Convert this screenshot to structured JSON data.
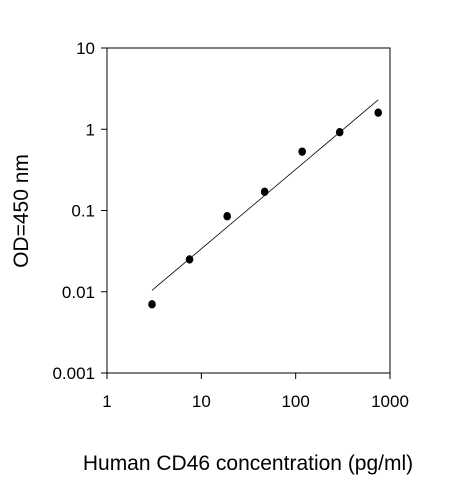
{
  "chart_data": {
    "type": "scatter",
    "title": "",
    "xlabel": "Human CD46 concentration (pg/ml)",
    "ylabel": "OD=450 nm",
    "x_scale": "log",
    "y_scale": "log",
    "xlim": [
      1,
      1000
    ],
    "ylim": [
      0.001,
      10
    ],
    "x_ticks": [
      {
        "value": 1,
        "label": "1"
      },
      {
        "value": 10,
        "label": "10"
      },
      {
        "value": 100,
        "label": "100"
      },
      {
        "value": 1000,
        "label": "1000"
      }
    ],
    "y_ticks": [
      {
        "value": 0.001,
        "label": "0.001"
      },
      {
        "value": 0.01,
        "label": "0.01"
      },
      {
        "value": 0.1,
        "label": "0.1"
      },
      {
        "value": 1,
        "label": "1"
      },
      {
        "value": 10,
        "label": "10"
      }
    ],
    "grid": false,
    "legend": "none",
    "points_color": "#000000",
    "series": [
      {
        "x": [
          3,
          7.5,
          18.8,
          46.9,
          117.2,
          293,
          750
        ],
        "y": [
          0.007,
          0.025,
          0.085,
          0.17,
          0.53,
          0.92,
          1.6
        ]
      }
    ],
    "trendline": {
      "x": [
        3,
        750
      ],
      "y": [
        0.0104,
        2.3
      ]
    }
  }
}
